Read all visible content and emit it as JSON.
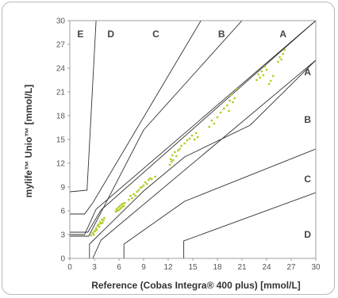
{
  "chart_data": {
    "type": "scatter",
    "title": "",
    "xlabel": "Reference (Cobas Integra® 400 plus) [mmol/L]",
    "ylabel": "mylife™ Unio™ [mmol/L]",
    "xlim": [
      0,
      30
    ],
    "ylim": [
      0,
      30
    ],
    "x_ticks": [
      "0",
      "3",
      "6",
      "9",
      "12",
      "15",
      "18",
      "21",
      "24",
      "27",
      "30"
    ],
    "y_ticks": [
      "0",
      "3",
      "6",
      "9",
      "12",
      "15",
      "18",
      "21",
      "24",
      "27",
      "30"
    ],
    "grid": false,
    "zone_labels": [
      {
        "text": "E",
        "x": 1.3,
        "y": 28.3
      },
      {
        "text": "D",
        "x": 5.0,
        "y": 28.3
      },
      {
        "text": "C",
        "x": 10.5,
        "y": 28.3
      },
      {
        "text": "B",
        "x": 18.5,
        "y": 28.3
      },
      {
        "text": "A",
        "x": 26.0,
        "y": 28.3
      },
      {
        "text": "A",
        "x": 29.0,
        "y": 23.5
      },
      {
        "text": "B",
        "x": 29.0,
        "y": 17.5
      },
      {
        "text": "C",
        "x": 29.0,
        "y": 10.0
      },
      {
        "text": "D",
        "x": 29.0,
        "y": 3.0
      }
    ],
    "zone_boundaries": [
      [
        [
          0,
          3.3
        ],
        [
          2.2,
          3.3
        ],
        [
          3.8,
          6.1
        ],
        [
          30,
          30
        ]
      ],
      [
        [
          0,
          3.0
        ],
        [
          1.8,
          3.0
        ],
        [
          3.2,
          6.2
        ],
        [
          30,
          30
        ]
      ],
      [
        [
          2.8,
          0
        ],
        [
          3.8,
          2.3
        ],
        [
          30,
          25.0
        ]
      ],
      [
        [
          0,
          2.8
        ],
        [
          2.3,
          2.8
        ],
        [
          9.0,
          16.2
        ],
        [
          13.0,
          20.8
        ],
        [
          21.0,
          30
        ]
      ],
      [
        [
          0,
          5.6
        ],
        [
          1.8,
          5.6
        ],
        [
          2.8,
          7.0
        ],
        [
          16.0,
          30
        ]
      ],
      [
        [
          2.4,
          0
        ],
        [
          2.4,
          1.8
        ],
        [
          9.0,
          8.5
        ],
        [
          14.0,
          12.8
        ],
        [
          22.0,
          16.8
        ],
        [
          30,
          25.0
        ]
      ],
      [
        [
          0,
          8.4
        ],
        [
          2.1,
          8.6
        ],
        [
          3.2,
          30
        ]
      ],
      [
        [
          6.6,
          0
        ],
        [
          6.6,
          1.8
        ],
        [
          14.0,
          7.2
        ],
        [
          30,
          13.8
        ]
      ],
      [
        [
          13.9,
          0
        ],
        [
          13.9,
          2.2
        ],
        [
          30,
          8.3
        ]
      ]
    ],
    "series": [
      {
        "color": "#b8cc2a",
        "points": [
          [
            2.6,
            2.9
          ],
          [
            2.8,
            3.2
          ],
          [
            2.9,
            3.0
          ],
          [
            3.0,
            3.4
          ],
          [
            3.1,
            3.5
          ],
          [
            3.2,
            3.8
          ],
          [
            3.3,
            3.6
          ],
          [
            3.4,
            4.1
          ],
          [
            3.5,
            4.3
          ],
          [
            3.6,
            4.0
          ],
          [
            3.7,
            4.6
          ],
          [
            3.8,
            4.4
          ],
          [
            3.9,
            4.9
          ],
          [
            4.0,
            4.5
          ],
          [
            4.1,
            4.8
          ],
          [
            4.2,
            5.1
          ],
          [
            5.6,
            5.9
          ],
          [
            5.7,
            6.2
          ],
          [
            5.8,
            6.0
          ],
          [
            5.9,
            6.4
          ],
          [
            6.0,
            6.1
          ],
          [
            6.1,
            6.6
          ],
          [
            6.2,
            6.3
          ],
          [
            6.3,
            6.8
          ],
          [
            6.4,
            6.5
          ],
          [
            6.5,
            6.9
          ],
          [
            6.6,
            6.6
          ],
          [
            6.7,
            7.0
          ],
          [
            7.2,
            7.4
          ],
          [
            7.4,
            7.9
          ],
          [
            7.6,
            7.6
          ],
          [
            7.8,
            8.1
          ],
          [
            8.0,
            7.9
          ],
          [
            8.2,
            8.4
          ],
          [
            8.4,
            8.6
          ],
          [
            8.6,
            8.9
          ],
          [
            8.8,
            9.0
          ],
          [
            9.0,
            9.2
          ],
          [
            9.2,
            9.6
          ],
          [
            9.4,
            9.4
          ],
          [
            9.6,
            9.9
          ],
          [
            9.8,
            10.1
          ],
          [
            10.0,
            10.0
          ],
          [
            10.4,
            10.3
          ],
          [
            12.2,
            11.8
          ],
          [
            12.3,
            12.5
          ],
          [
            12.4,
            12.2
          ],
          [
            12.5,
            13.0
          ],
          [
            12.6,
            12.4
          ],
          [
            12.8,
            13.4
          ],
          [
            13.0,
            12.9
          ],
          [
            13.2,
            13.6
          ],
          [
            13.4,
            13.8
          ],
          [
            13.6,
            14.2
          ],
          [
            14.0,
            14.5
          ],
          [
            14.3,
            14.9
          ],
          [
            14.6,
            15.1
          ],
          [
            14.9,
            15.5
          ],
          [
            15.2,
            15.0
          ],
          [
            15.4,
            15.8
          ],
          [
            15.6,
            15.3
          ],
          [
            17.0,
            16.6
          ],
          [
            17.3,
            17.4
          ],
          [
            17.6,
            17.0
          ],
          [
            18.0,
            17.8
          ],
          [
            18.4,
            18.4
          ],
          [
            18.8,
            18.9
          ],
          [
            19.2,
            19.3
          ],
          [
            19.5,
            19.9
          ],
          [
            19.7,
            20.6
          ],
          [
            19.9,
            19.7
          ],
          [
            20.1,
            20.2
          ],
          [
            20.3,
            21.4
          ],
          [
            19.4,
            18.6
          ],
          [
            22.8,
            22.5
          ],
          [
            23.0,
            23.2
          ],
          [
            23.2,
            22.8
          ],
          [
            23.4,
            23.6
          ],
          [
            23.6,
            23.1
          ],
          [
            23.8,
            24.2
          ],
          [
            24.0,
            23.8
          ],
          [
            24.3,
            22.0
          ],
          [
            24.5,
            22.4
          ],
          [
            24.8,
            23.0
          ],
          [
            25.4,
            24.8
          ],
          [
            25.6,
            25.4
          ],
          [
            25.8,
            25.1
          ],
          [
            26.0,
            25.8
          ],
          [
            26.2,
            26.3
          ]
        ]
      }
    ]
  }
}
